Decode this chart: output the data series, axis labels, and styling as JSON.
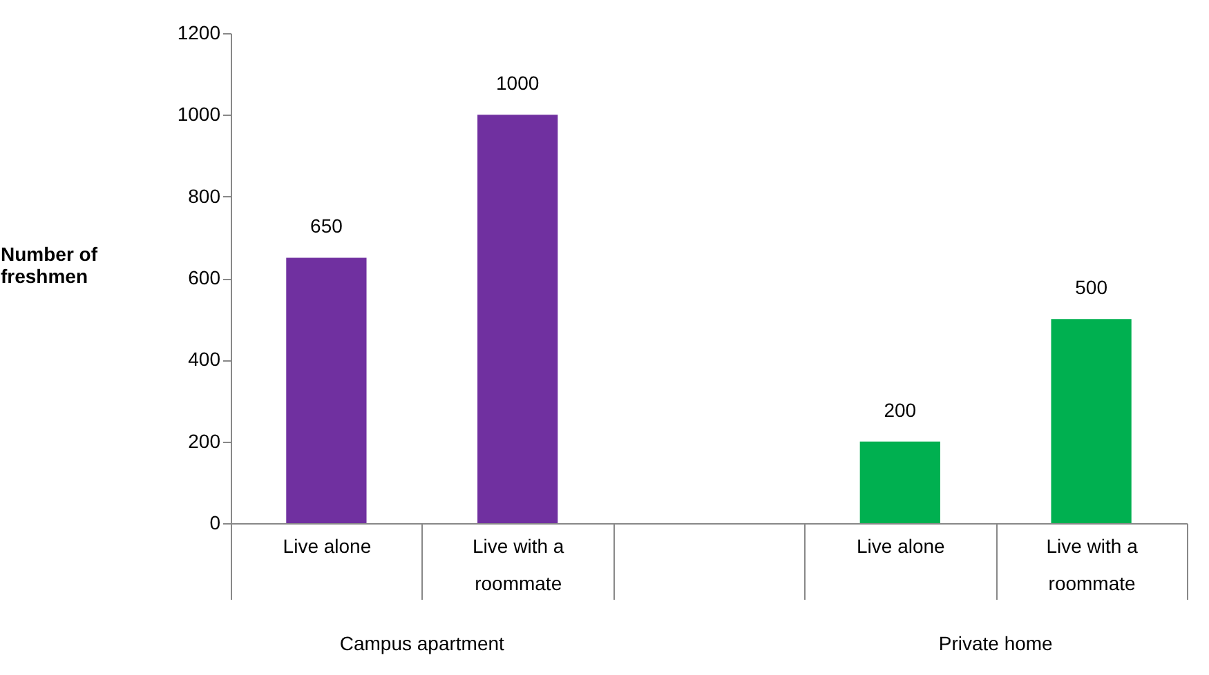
{
  "chart_data": {
    "type": "bar",
    "ylabel": "Number of freshmen",
    "categories": [
      "Live alone",
      "Live with a roommate",
      null,
      "Live alone",
      "Live with a roommate"
    ],
    "values": [
      650,
      1000,
      null,
      200,
      500
    ],
    "colors": [
      "#7030a0",
      "#7030a0",
      null,
      "#00b050",
      "#00b050"
    ],
    "ylim": [
      0,
      1200
    ],
    "yticks": [
      0,
      200,
      400,
      600,
      800,
      1000,
      1200
    ],
    "data_labels": true,
    "grid": false,
    "annotations": [
      "Campus apartment",
      "Private home"
    ]
  }
}
